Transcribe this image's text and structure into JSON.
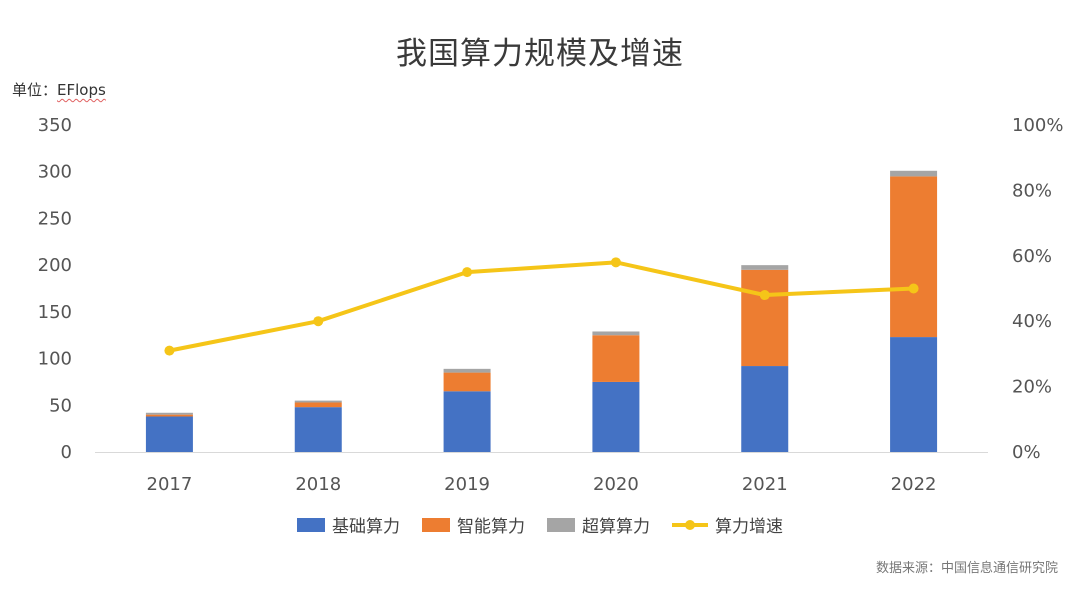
{
  "chart_data": {
    "type": "bar",
    "stacked": true,
    "title": "我国算力规模及增速",
    "unit_label": "单位：",
    "unit_value": "EFlops",
    "categories": [
      "2017",
      "2018",
      "2019",
      "2020",
      "2021",
      "2022"
    ],
    "series": [
      {
        "name": "基础算力",
        "values": [
          38,
          48,
          65,
          75,
          92,
          123
        ],
        "color": "#4472C4"
      },
      {
        "name": "智能算力",
        "values": [
          2,
          5,
          20,
          50,
          103,
          172
        ],
        "color": "#ED7D31"
      },
      {
        "name": "超算算力",
        "values": [
          2,
          2,
          4,
          4,
          5,
          6
        ],
        "color": "#A5A5A5"
      }
    ],
    "line_series": {
      "name": "算力增速",
      "values": [
        31,
        40,
        55,
        58,
        48,
        50
      ],
      "color": "#F5C518",
      "axis": "right"
    },
    "ylim": [
      0,
      350
    ],
    "yticks": [
      "0",
      "50",
      "100",
      "150",
      "200",
      "250",
      "300",
      "350"
    ],
    "y2lim": [
      0,
      100
    ],
    "y2ticks": [
      "0%",
      "20%",
      "40%",
      "60%",
      "80%",
      "100%"
    ],
    "grid": false,
    "legend_position": "bottom",
    "source": "数据来源：中国信息通信研究院"
  }
}
